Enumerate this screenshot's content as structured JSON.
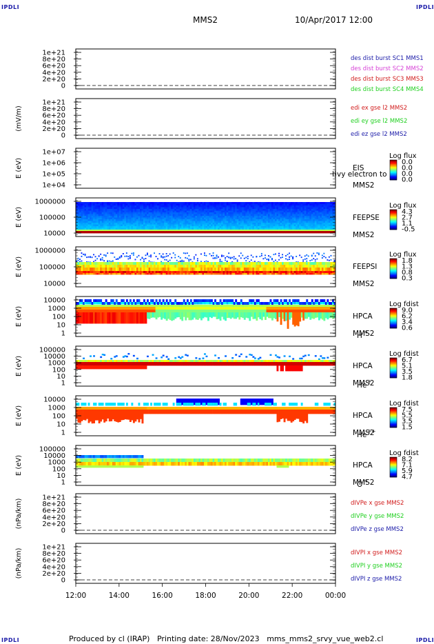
{
  "corner_label": "IPDLI",
  "header": {
    "spacecraft": "MMS2",
    "datetime": "10/Apr/2017 12:00"
  },
  "footer": {
    "produced_by": "Produced by cl (IRAP)",
    "printing_date": "Printing date: 28/Nov/2023",
    "script_name": "mms_mms2_srvy_vue_web2.cl"
  },
  "chart_data": [
    {
      "type": "line",
      "panel": "des-dist-burst",
      "ylabel": "",
      "yticks": [
        "1e+21",
        "8e+20",
        "6e+20",
        "4e+20",
        "2e+20",
        "0"
      ],
      "zero_line": "dashed",
      "legend": [
        {
          "text": "des dist burst SC1 MMS1",
          "color": "#1a1aa8"
        },
        {
          "text": "des dist burst SC2 MMS2",
          "color": "#d63fd6"
        },
        {
          "text": "des dist burst SC3 MMS3",
          "color": "#d11b1b"
        },
        {
          "text": "des dist burst SC4 MMS4",
          "color": "#1ecf1e"
        }
      ]
    },
    {
      "type": "line",
      "panel": "edi-e",
      "ylabel": "(mV/m)",
      "yticks": [
        "1e+21",
        "8e+20",
        "6e+20",
        "4e+20",
        "2e+20",
        "0"
      ],
      "zero_line": "dashed",
      "legend": [
        {
          "text": "edi ex gse l2 MMS2",
          "color": "#d11b1b"
        },
        {
          "text": "edi ey gse l2 MMS2",
          "color": "#1ecf1e"
        },
        {
          "text": "edi ez gse l2 MMS2",
          "color": "#1a1aa8"
        }
      ]
    },
    {
      "type": "heatmap",
      "panel": "eis",
      "ylabel": "E (eV)",
      "yticks": [
        "1e+07",
        "1e+06",
        "1e+05",
        "1e+04"
      ],
      "ylim": [
        10000,
        10000000
      ],
      "yscale": "log",
      "labels": [
        "EIS",
        "MMS2"
      ],
      "overlay_text": "l)vy electron to",
      "colorbar": {
        "title": "Log flux",
        "ticks": [
          "0.0",
          "0.0",
          "0.0",
          "0.0"
        ]
      },
      "fill": "empty"
    },
    {
      "type": "heatmap",
      "panel": "feeps-e",
      "ylabel": "E (eV)",
      "yticks": [
        "1000000",
        "100000",
        "10000"
      ],
      "ylim": [
        10000,
        1000000
      ],
      "yscale": "log",
      "labels": [
        "FEEPSE",
        "MMS2"
      ],
      "colorbar": {
        "title": "Log flux",
        "ticks": [
          "4.3",
          "2.7",
          "1.1",
          "-0.5"
        ]
      },
      "fill": "feeps-e"
    },
    {
      "type": "heatmap",
      "panel": "feeps-i",
      "ylabel": "E (eV)",
      "yticks": [
        "1000000",
        "100000",
        "10000"
      ],
      "ylim": [
        10000,
        1000000
      ],
      "yscale": "log",
      "labels": [
        "FEEPSI",
        "MMS2"
      ],
      "colorbar": {
        "title": "Log flux",
        "ticks": [
          "1.8",
          "1.3",
          "0.8",
          "0.3"
        ]
      },
      "fill": "feeps-i"
    },
    {
      "type": "heatmap",
      "panel": "hpca-h",
      "ylabel": "E (eV)",
      "yticks": [
        "10000",
        "1000",
        "100",
        "10",
        "1"
      ],
      "ylim": [
        1,
        40000
      ],
      "yscale": "log",
      "labels": [
        "HPCA",
        "MMS2"
      ],
      "species": "H",
      "species_charge": "+",
      "colorbar": {
        "title": "Log fdist",
        "ticks": [
          "9.0",
          "6.2",
          "3.4",
          "0.6"
        ]
      },
      "fill": "hpca-h"
    },
    {
      "type": "heatmap",
      "panel": "hpca-he1",
      "ylabel": "E (eV)",
      "yticks": [
        "100000",
        "10000",
        "1000",
        "100",
        "10",
        "1"
      ],
      "ylim": [
        1,
        100000
      ],
      "yscale": "log",
      "labels": [
        "HPCA",
        "MMS2"
      ],
      "species": "He",
      "species_charge": "+",
      "colorbar": {
        "title": "Log fdist",
        "ticks": [
          "6.7",
          "5.1",
          "3.5",
          "1.8"
        ]
      },
      "fill": "hpca-he1"
    },
    {
      "type": "heatmap",
      "panel": "hpca-he2",
      "ylabel": "E (eV)",
      "yticks": [
        "10000",
        "1000",
        "100",
        "10",
        "1"
      ],
      "ylim": [
        1,
        40000
      ],
      "yscale": "log",
      "labels": [
        "HPCA",
        "MMS2"
      ],
      "species": "He",
      "species_charge": "++",
      "colorbar": {
        "title": "Log fdist",
        "ticks": [
          "7.5",
          "5.5",
          "3.5",
          "1.5"
        ]
      },
      "fill": "hpca-he2"
    },
    {
      "type": "heatmap",
      "panel": "hpca-o",
      "ylabel": "E (eV)",
      "yticks": [
        "100000",
        "10000",
        "1000",
        "100",
        "10",
        "1"
      ],
      "ylim": [
        1,
        100000
      ],
      "yscale": "log",
      "labels": [
        "HPCA",
        "MMS2"
      ],
      "species": "O",
      "species_charge": "+",
      "colorbar": {
        "title": "Log fdist",
        "ticks": [
          "8.2",
          "7.1",
          "5.9",
          "4.7"
        ]
      },
      "fill": "hpca-o"
    },
    {
      "type": "line",
      "panel": "divpe",
      "ylabel": "(nPa/km)",
      "yticks": [
        "1e+21",
        "8e+20",
        "6e+20",
        "4e+20",
        "2e+20",
        "0"
      ],
      "zero_line": "dashed",
      "legend": [
        {
          "text": "dIVPe x gse MMS2",
          "color": "#d11b1b"
        },
        {
          "text": "dIVPe y gse MMS2",
          "color": "#1ecf1e"
        },
        {
          "text": "dIVPe z gse MMS2",
          "color": "#1a1aa8"
        }
      ]
    },
    {
      "type": "line",
      "panel": "divpi",
      "ylabel": "(nPa/km)",
      "yticks": [
        "1e+21",
        "8e+20",
        "6e+20",
        "4e+20",
        "2e+20",
        "0"
      ],
      "zero_line": "dashed",
      "legend": [
        {
          "text": "dIVPI x gse MMS2",
          "color": "#d11b1b"
        },
        {
          "text": "dIVPI y gse MMS2",
          "color": "#1ecf1e"
        },
        {
          "text": "dIVPI z gse MMS2",
          "color": "#1a1aa8"
        }
      ]
    }
  ],
  "time_axis": {
    "ticks": [
      "12:00",
      "14:00",
      "16:00",
      "18:00",
      "20:00",
      "22:00",
      "00:00"
    ]
  }
}
